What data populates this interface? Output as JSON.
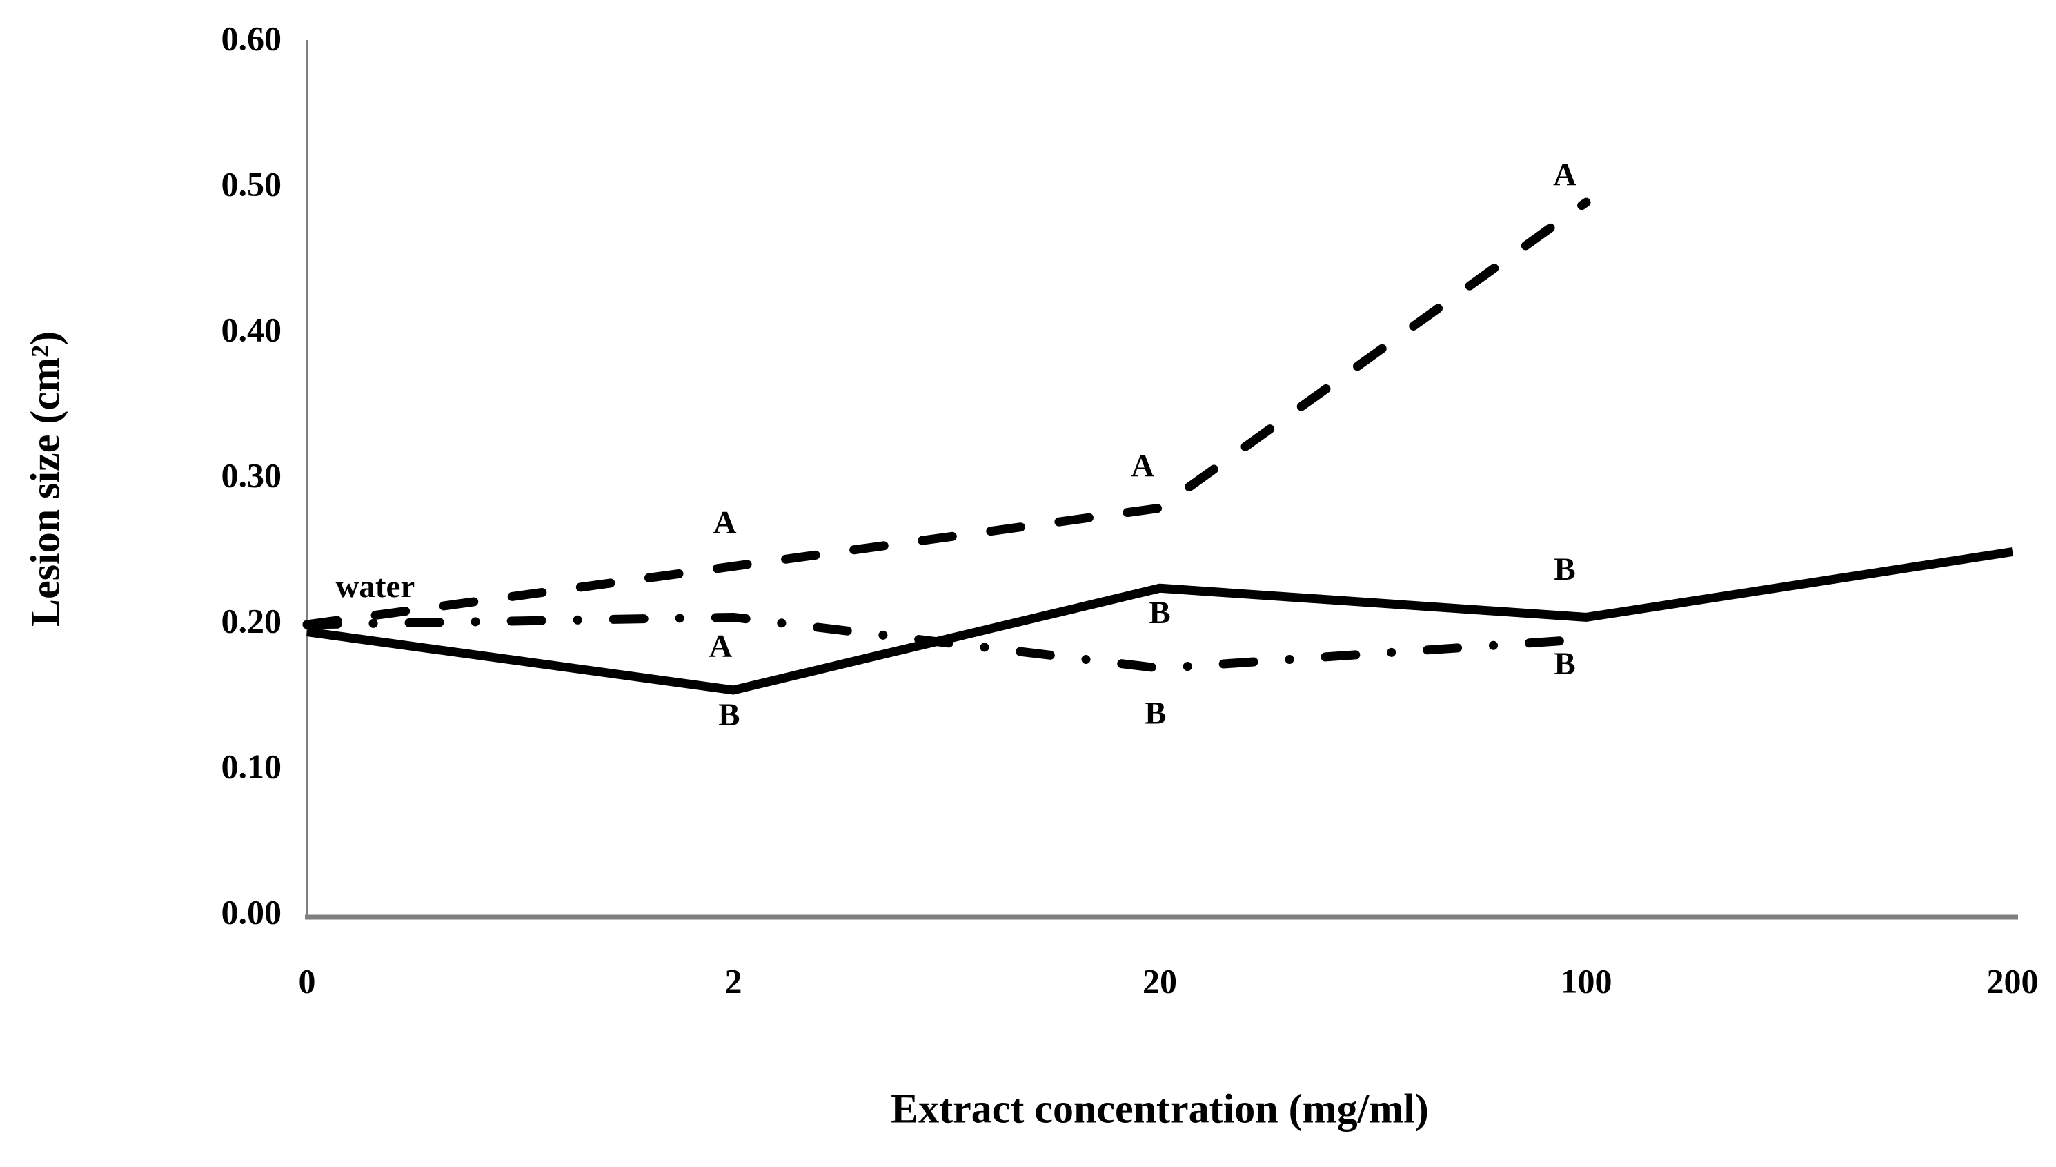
{
  "chart_data": {
    "type": "line",
    "title": "",
    "xlabel": "Extract concentration (mg/ml)",
    "ylabel": "Lesion size (cm²)",
    "categories": [
      "0",
      "2",
      "20",
      "100",
      "200"
    ],
    "ytick_labels": [
      "0.00",
      "0.10",
      "0.20",
      "0.30",
      "0.40",
      "0.50",
      "0.60"
    ],
    "ylim": [
      0.0,
      0.6
    ],
    "ytick_step": 0.1,
    "grid": false,
    "legend_position": "none",
    "axis_color": "#7f7f7f",
    "line_color": "#000000",
    "series": [
      {
        "name": "solid-line",
        "style": "solid",
        "color": "#000000",
        "values": [
          0.195,
          0.155,
          0.225,
          0.205,
          0.25
        ]
      },
      {
        "name": "dashed-line",
        "style": "dashed",
        "color": "#000000",
        "values": [
          0.2,
          0.24,
          0.28,
          0.49,
          null
        ]
      },
      {
        "name": "dash-dot-line",
        "style": "dash-dot",
        "color": "#000000",
        "values": [
          0.2,
          0.205,
          0.17,
          0.19,
          null
        ]
      }
    ],
    "annotations": [
      {
        "text": "water",
        "x": 0.16,
        "y": 0.224
      },
      {
        "text": "A",
        "x": 0.98,
        "y": 0.268
      },
      {
        "text": "A",
        "x": 0.97,
        "y": 0.183
      },
      {
        "text": "B",
        "x": 0.99,
        "y": 0.136
      },
      {
        "text": "A",
        "x": 1.96,
        "y": 0.307
      },
      {
        "text": "B",
        "x": 2.0,
        "y": 0.206
      },
      {
        "text": "B",
        "x": 1.99,
        "y": 0.137
      },
      {
        "text": "A",
        "x": 2.95,
        "y": 0.507
      },
      {
        "text": "B",
        "x": 2.95,
        "y": 0.236
      },
      {
        "text": "B",
        "x": 2.95,
        "y": 0.171
      }
    ]
  }
}
